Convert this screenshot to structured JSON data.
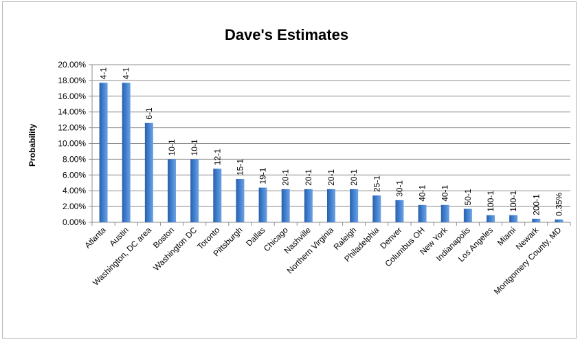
{
  "chart_data": {
    "type": "bar",
    "title": "Dave's Estimates",
    "xlabel": "",
    "ylabel": "Probability",
    "ylim": [
      0,
      0.2
    ],
    "ytick_values": [
      0,
      0.02,
      0.04,
      0.06,
      0.08,
      0.1,
      0.12,
      0.14,
      0.16,
      0.18,
      0.2
    ],
    "ytick_labels": [
      "0.00%",
      "2.00%",
      "4.00%",
      "6.00%",
      "8.00%",
      "10.00%",
      "12.00%",
      "14.00%",
      "16.00%",
      "18.00%",
      "20.00%"
    ],
    "grid": true,
    "legend": "none",
    "bar_color": "#3f7fd0",
    "categories": [
      "Atlanta",
      "Austin",
      "Washington, DC area",
      "Boston",
      "Washington DC",
      "Toronto",
      "Pittsburgh",
      "Dallas",
      "Chicago",
      "Nashville",
      "Northern Virginia",
      "Raleigh",
      "Philadelphia",
      "Denver",
      "Columbus OH",
      "New York",
      "Indianapolis",
      "Los Angeles",
      "Miami",
      "Newark",
      "Montgomery County, MD"
    ],
    "values": [
      0.177,
      0.177,
      0.126,
      0.08,
      0.08,
      0.068,
      0.055,
      0.044,
      0.042,
      0.042,
      0.042,
      0.042,
      0.034,
      0.028,
      0.022,
      0.022,
      0.017,
      0.009,
      0.009,
      0.0045,
      0.0035
    ],
    "data_labels": [
      "4-1",
      "4-1",
      "6-1",
      "10-1",
      "10-1",
      "12-1",
      "15-1",
      "19-1",
      "20-1",
      "20-1",
      "20-1",
      "20-1",
      "25-1",
      "30-1",
      "40-1",
      "40-1",
      "50-1",
      "100-1",
      "100-1",
      "200-1",
      "0.35%"
    ]
  }
}
